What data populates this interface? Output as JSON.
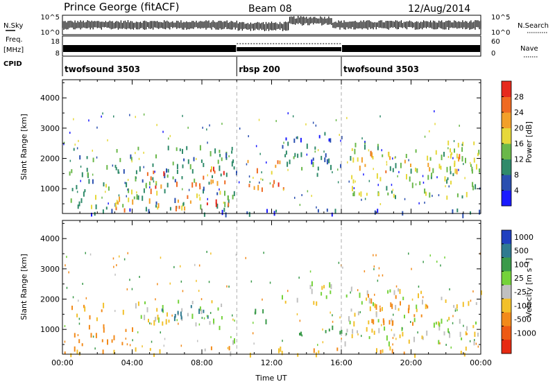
{
  "header": {
    "title": "Prince George (fitACF)",
    "beam": "Beam 08",
    "date": "12/Aug/2014"
  },
  "status": {
    "left_labels": [
      "N.Sky",
      "Freq.",
      "[MHz]",
      "CPID"
    ],
    "right_labels": [
      "N.Search",
      "Nave"
    ],
    "nsky_ticks": [
      "10^5",
      "10^0"
    ],
    "nsearch_ticks": [
      "10^5",
      "10^0"
    ],
    "freq_ticks": [
      "18",
      "8"
    ],
    "nave_ticks": [
      "60",
      "0"
    ],
    "cpid_segments": [
      {
        "label": "twofsound 3503",
        "start_hour": 0,
        "end_hour": 10
      },
      {
        "label": "rbsp 200",
        "start_hour": 10,
        "end_hour": 16
      },
      {
        "label": "twofsound 3503",
        "start_hour": 16,
        "end_hour": 24
      }
    ]
  },
  "axes": {
    "ylabel": "Slant Range [km]",
    "xlabel": "Time UT",
    "x_tick_labels": [
      "00:00",
      "04:00",
      "08:00",
      "12:00",
      "16:00",
      "20:00",
      "00:00"
    ],
    "x_ticks_hours": [
      0,
      4,
      8,
      12,
      16,
      20,
      24
    ],
    "y_tick_labels": [
      "1000",
      "2000",
      "3000",
      "4000"
    ],
    "y_ticks_km": [
      1000,
      2000,
      3000,
      4000
    ],
    "ylim": [
      180,
      4600
    ],
    "xlim": [
      0,
      24
    ],
    "mode_boundaries_hours": [
      10,
      16
    ]
  },
  "colorbars": {
    "power": {
      "label": "Power [dB]",
      "tick_labels": [
        "4",
        "8",
        "12",
        "16",
        "20",
        "24",
        "28"
      ],
      "colors": [
        "#1a1aff",
        "#2a4fb0",
        "#2f8a6a",
        "#6ab84a",
        "#e6d83a",
        "#f2a02a",
        "#ef6a22",
        "#e62a1e"
      ]
    },
    "velocity": {
      "label": "Velocity [m s⁻¹]",
      "tick_labels": [
        "1000",
        "500",
        "100",
        "25",
        "-25",
        "-100",
        "-500",
        "-1000"
      ],
      "colors": [
        "#1f3fbf",
        "#2f7a90",
        "#3a9a4a",
        "#74d23a",
        "#c0c0c0",
        "#f2c02a",
        "#f28a1a",
        "#ee5a14",
        "#e62a12"
      ]
    }
  },
  "chart_data": {
    "type": "heatmap",
    "title": "Prince George (fitACF)",
    "xlabel": "Time UT",
    "ylabel": "Slant Range [km]",
    "xlim": [
      0,
      24
    ],
    "ylim": [
      180,
      4600
    ],
    "power_patches": [
      {
        "t0": 0.3,
        "t1": 10.0,
        "r0": 400,
        "r1": 2500,
        "value": 12
      },
      {
        "t0": 4.5,
        "t1": 9.5,
        "r0": 1000,
        "r1": 1800,
        "value": 26
      },
      {
        "t0": 5.5,
        "t1": 9.5,
        "r0": 350,
        "r1": 650,
        "value": 27
      },
      {
        "t0": 3.0,
        "t1": 8.0,
        "r0": 350,
        "r1": 800,
        "value": 22
      },
      {
        "t0": 10.5,
        "t1": 13.0,
        "r0": 1000,
        "r1": 2000,
        "value": 24
      },
      {
        "t0": 12.5,
        "t1": 16.0,
        "r0": 1500,
        "r1": 2900,
        "value": 8
      },
      {
        "t0": 16.0,
        "t1": 24.0,
        "r0": 700,
        "r1": 2600,
        "value": 14
      },
      {
        "t0": 17.0,
        "t1": 23.0,
        "r0": 1600,
        "r1": 2300,
        "value": 20
      },
      {
        "t0": 0.0,
        "t1": 24.0,
        "r0": 200,
        "r1": 400,
        "value": 6
      }
    ],
    "velocity_patches": [
      {
        "t0": 0.3,
        "t1": 3.5,
        "r0": 1300,
        "r1": 1900,
        "value": -100
      },
      {
        "t0": 0.5,
        "t1": 4.0,
        "r0": 500,
        "r1": 1200,
        "value": -300
      },
      {
        "t0": 3.5,
        "t1": 9.5,
        "r0": 1200,
        "r1": 2000,
        "value": 20
      },
      {
        "t0": 5.0,
        "t1": 8.5,
        "r0": 1400,
        "r1": 1900,
        "value": 600
      },
      {
        "t0": 8.0,
        "t1": 10.0,
        "r0": 500,
        "r1": 1200,
        "value": 0
      },
      {
        "t0": 11.0,
        "t1": 12.5,
        "r0": 1300,
        "r1": 1900,
        "value": 300
      },
      {
        "t0": 12.5,
        "t1": 16.0,
        "r0": 1800,
        "r1": 2600,
        "value": 0
      },
      {
        "t0": 13.0,
        "t1": 16.0,
        "r0": 700,
        "r1": 1200,
        "value": 200
      },
      {
        "t0": 16.0,
        "t1": 24.0,
        "r0": 600,
        "r1": 2400,
        "value": 0
      },
      {
        "t0": 17.5,
        "t1": 21.0,
        "r0": 1200,
        "r1": 2200,
        "value": -200
      },
      {
        "t0": 0.0,
        "t1": 24.0,
        "r0": 200,
        "r1": 450,
        "value": -80
      }
    ]
  }
}
